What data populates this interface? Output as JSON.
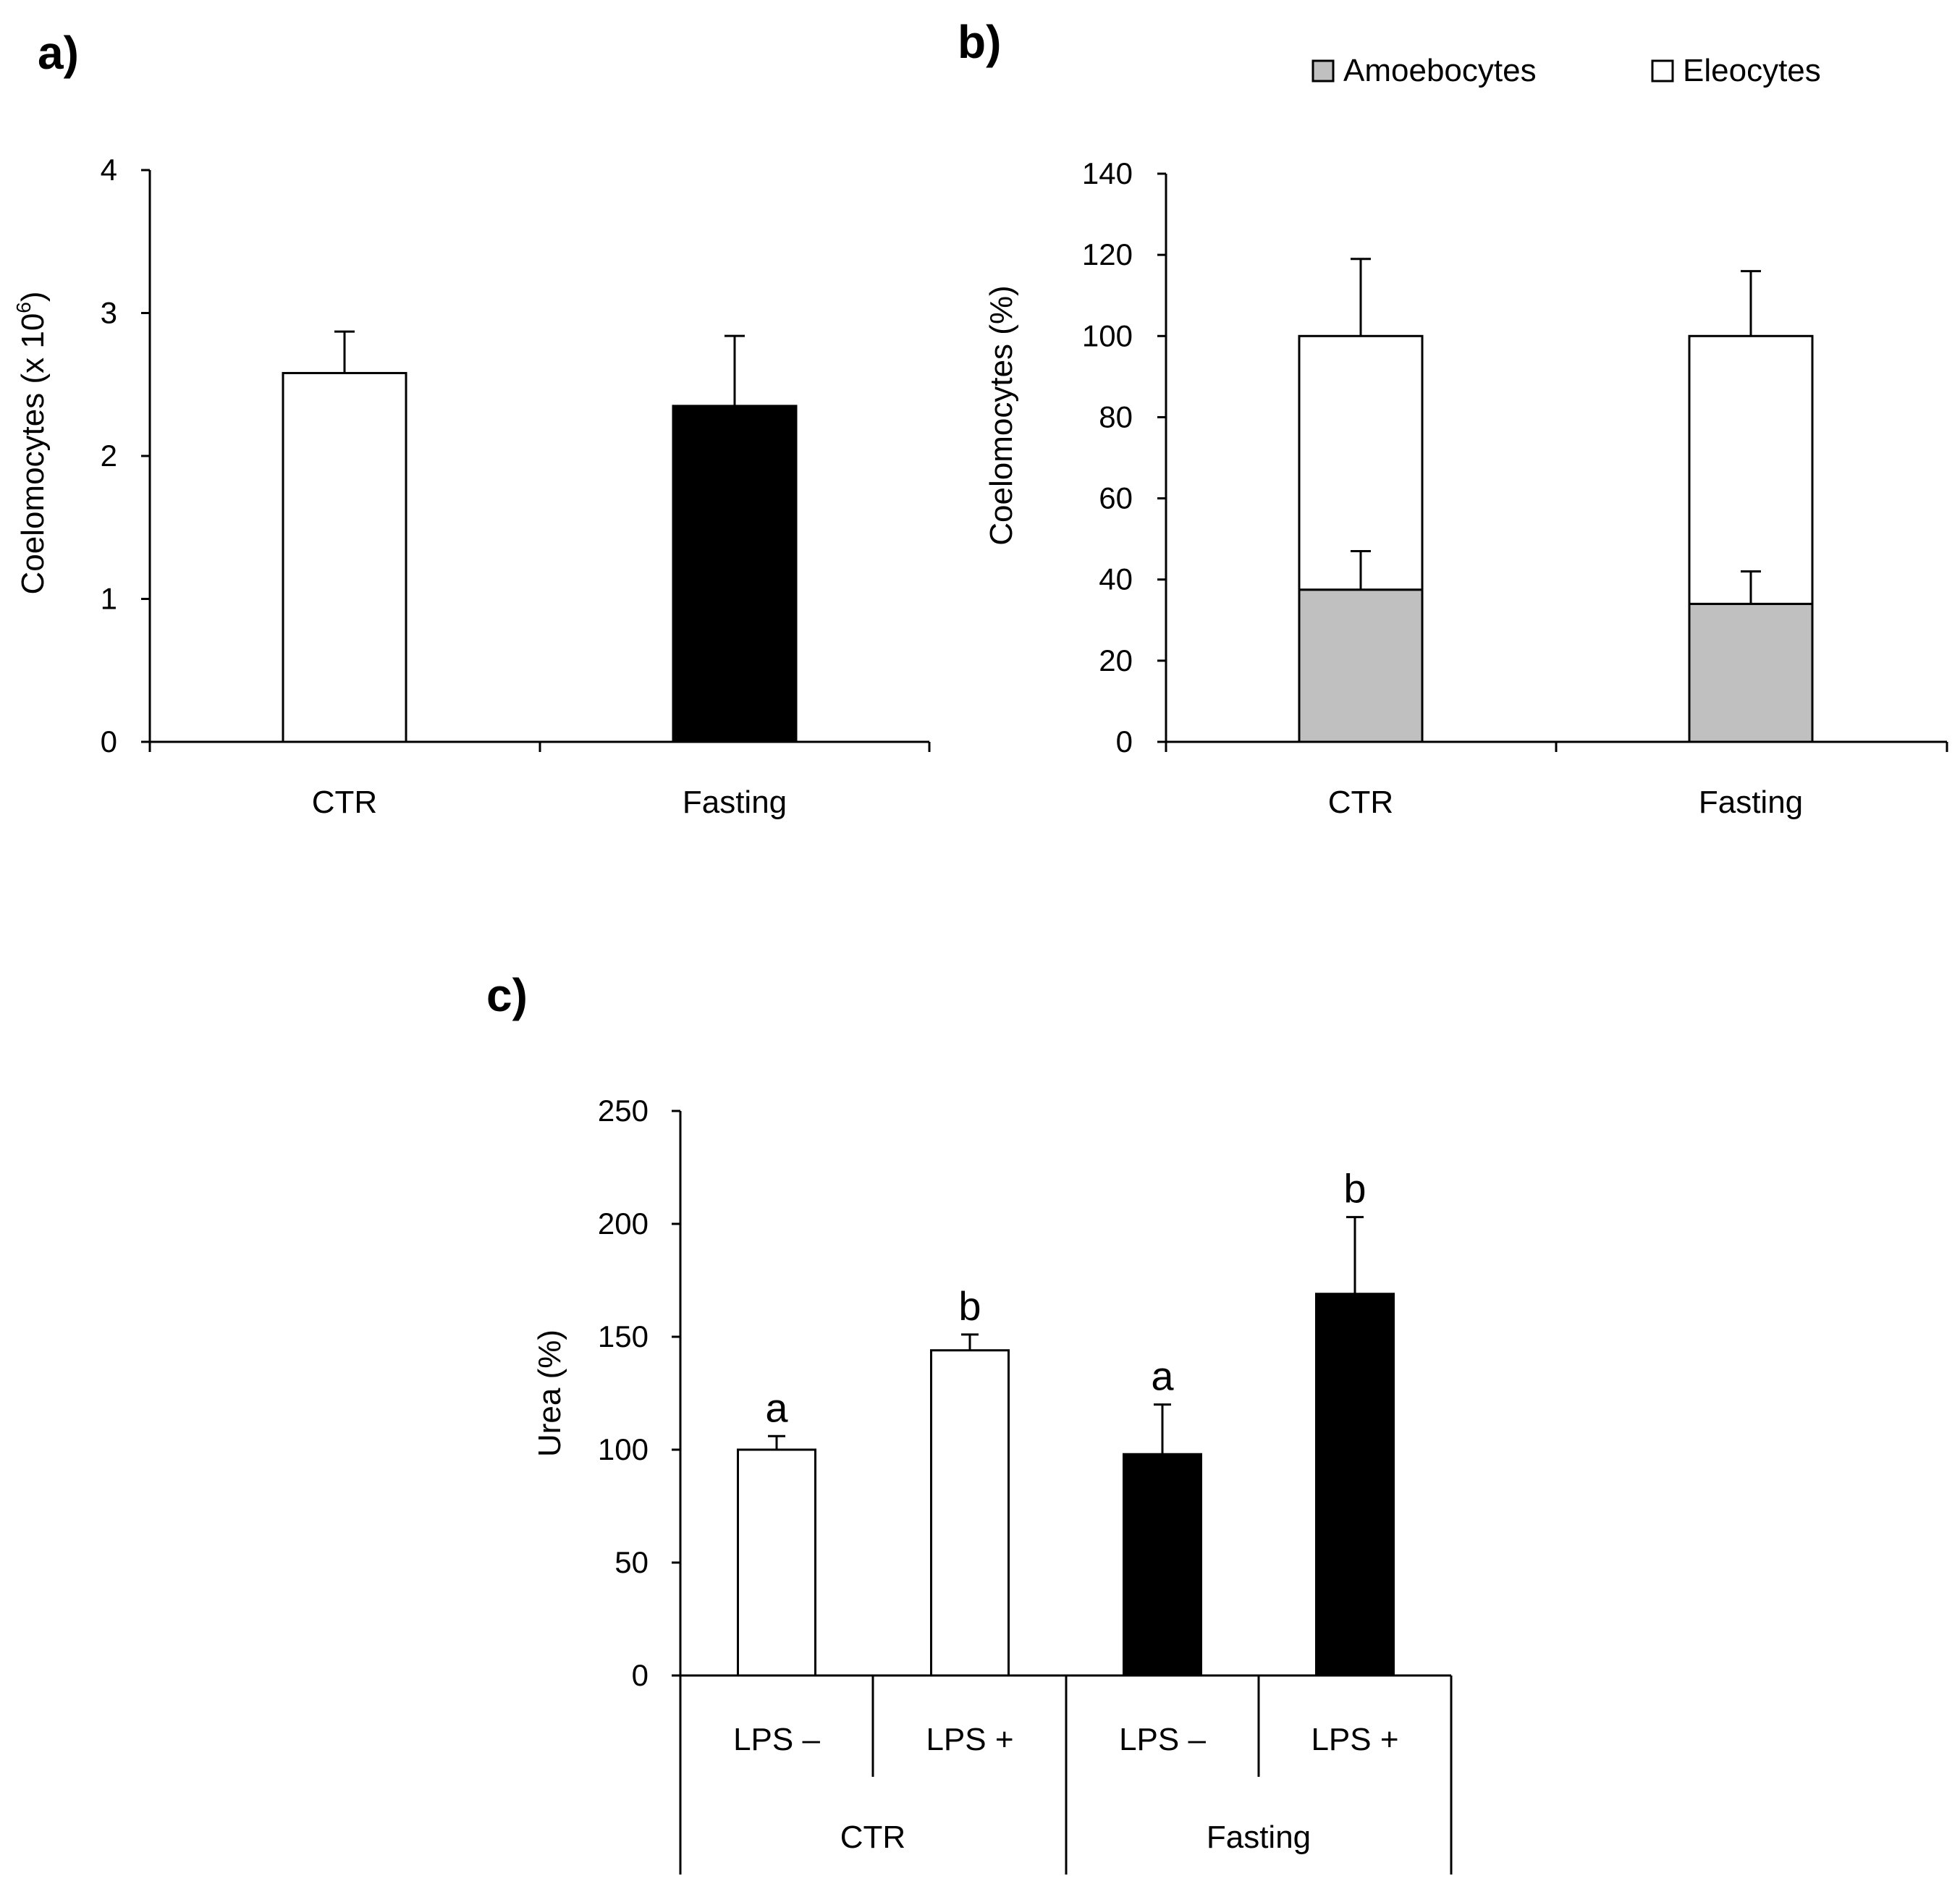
{
  "colors": {
    "ctr_fill": "#ffffff",
    "fasting_fill": "#000000",
    "amoebocytes_fill": "#c0c0c0",
    "eleocytes_fill": "#ffffff",
    "stroke": "#000000"
  },
  "chart_data": [
    {
      "panel": "a)",
      "type": "bar",
      "title": "",
      "xlabel": "",
      "ylabel": "Coelomocytes (x 10",
      "ylabel_superscript": "6",
      "ylabel_close": ")",
      "ylim": [
        0,
        4
      ],
      "yticks": [
        "0",
        "1",
        "2",
        "3",
        "4"
      ],
      "categories": [
        "CTR",
        "Fasting"
      ],
      "values": [
        2.58,
        2.35
      ],
      "errors": [
        0.29,
        0.49
      ],
      "fills": [
        "ctr_fill",
        "fasting_fill"
      ]
    },
    {
      "panel": "b)",
      "type": "bar",
      "stacked": true,
      "title": "",
      "xlabel": "",
      "ylabel": "Coelomocytes (%)",
      "ylim": [
        0,
        140
      ],
      "yticks": [
        "0",
        "20",
        "40",
        "60",
        "80",
        "100",
        "120",
        "140"
      ],
      "categories": [
        "CTR",
        "Fasting"
      ],
      "legend_position": "top-right",
      "series": [
        {
          "name": "Amoebocytes",
          "values": [
            37.5,
            34
          ],
          "errors": [
            9.5,
            8
          ]
        },
        {
          "name": "Eleocytes",
          "values": [
            62.5,
            66
          ],
          "errors": [
            19,
            16
          ]
        }
      ]
    },
    {
      "panel": "c)",
      "type": "bar",
      "title": "",
      "xlabel": "",
      "ylabel": "Urea (%)",
      "ylim": [
        0,
        250
      ],
      "yticks": [
        "0",
        "50",
        "100",
        "150",
        "200",
        "250"
      ],
      "categories": [
        "LPS –",
        "LPS +",
        "LPS –",
        "LPS +"
      ],
      "groups": [
        {
          "name": "CTR",
          "members": [
            0,
            1
          ]
        },
        {
          "name": "Fasting",
          "members": [
            2,
            3
          ]
        }
      ],
      "values": [
        100,
        144,
        98,
        169
      ],
      "errors": [
        6,
        7,
        22,
        34
      ],
      "annotations": [
        "a",
        "b",
        "a",
        "b"
      ],
      "fills": [
        "ctr_fill",
        "ctr_fill",
        "fasting_fill",
        "fasting_fill"
      ]
    }
  ]
}
